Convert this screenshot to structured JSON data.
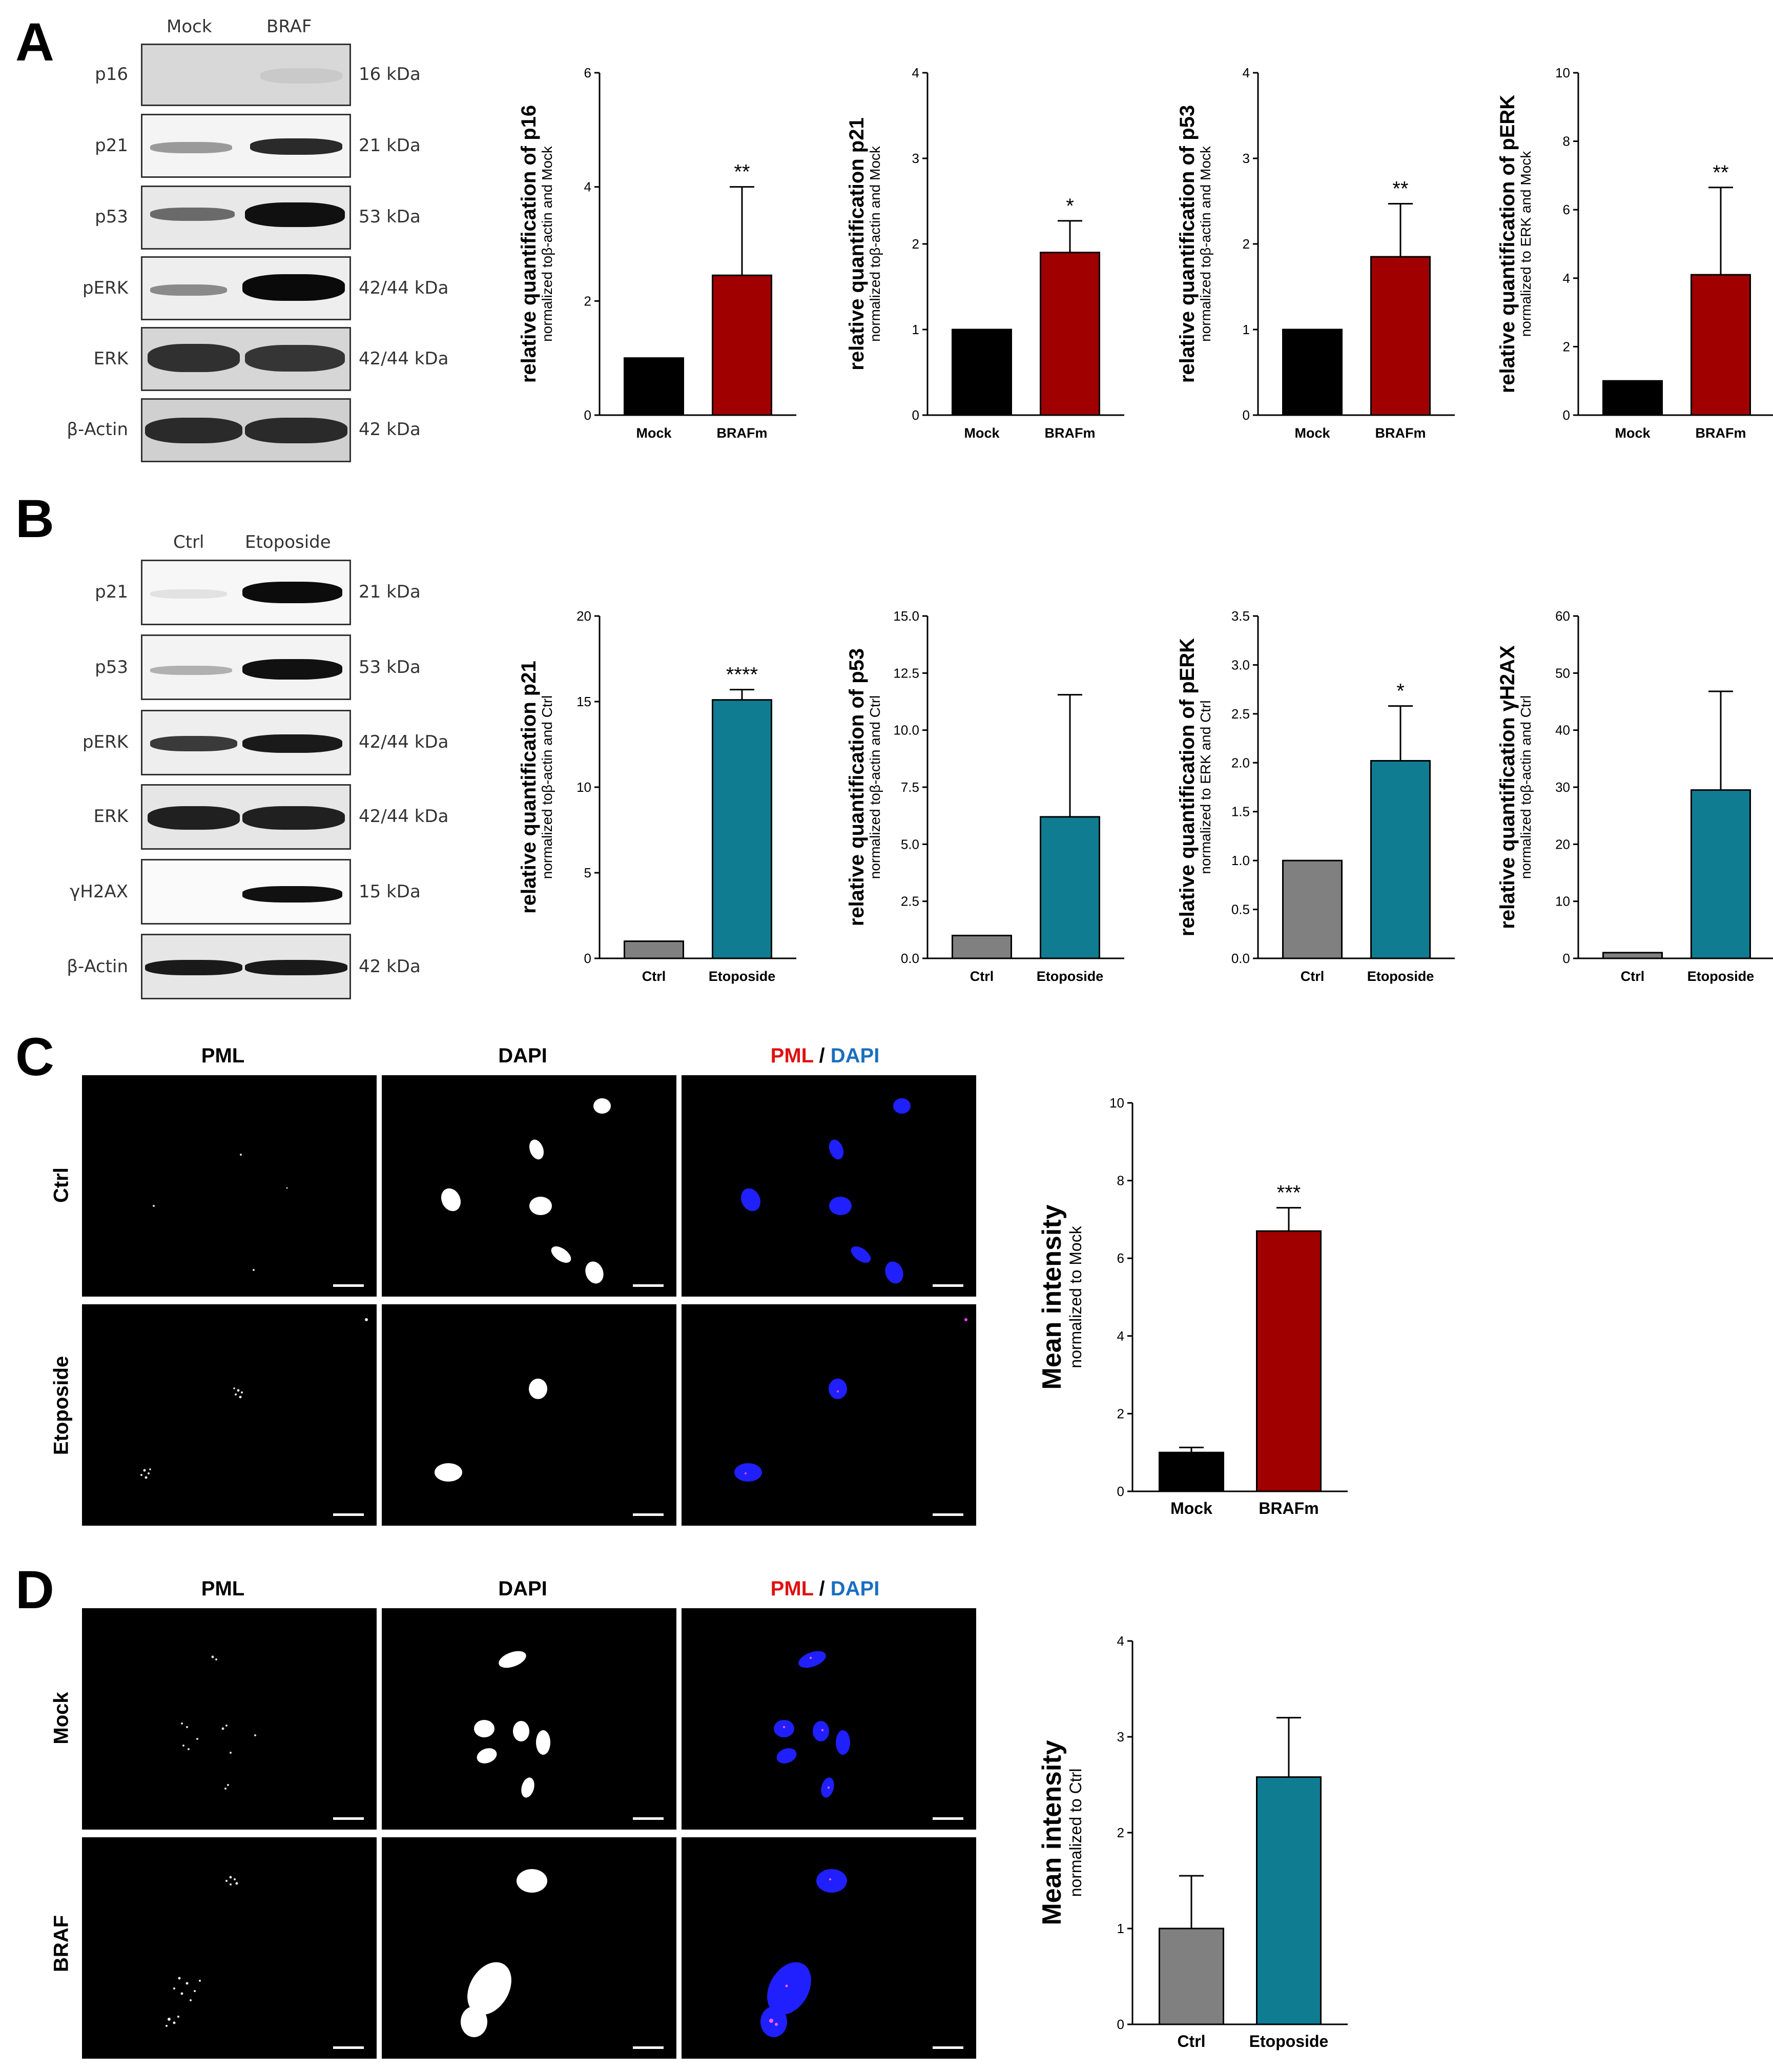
{
  "panels": {
    "a": "A",
    "b": "B",
    "c": "C",
    "d": "D"
  },
  "panel_a": {
    "blot_columns": [
      "Mock",
      "BRAF"
    ],
    "blots": [
      {
        "protein": "p16",
        "size": "16 kDa"
      },
      {
        "protein": "p21",
        "size": "21 kDa"
      },
      {
        "protein": "p53",
        "size": "53 kDa"
      },
      {
        "protein": "pERK",
        "size": "42/44 kDa"
      },
      {
        "protein": "ERK",
        "size": "42/44 kDa"
      },
      {
        "protein": "β-Actin",
        "size": "42 kDa"
      }
    ]
  },
  "panel_b": {
    "blot_columns": [
      "Ctrl",
      "Etoposide"
    ],
    "blots": [
      {
        "protein": "p21",
        "size": "21 kDa"
      },
      {
        "protein": "p53",
        "size": "53 kDa"
      },
      {
        "protein": "pERK",
        "size": "42/44 kDa"
      },
      {
        "protein": "ERK",
        "size": "42/44 kDa"
      },
      {
        "protein": "γH2AX",
        "size": "15 kDa"
      },
      {
        "protein": "β-Actin",
        "size": "42 kDa"
      }
    ]
  },
  "panel_c": {
    "columns": {
      "pml": "PML",
      "dapi": "DAPI",
      "merge_a": "PML",
      "merge_sep": " / ",
      "merge_b": "DAPI"
    },
    "rows": [
      "Ctrl",
      "Etoposide"
    ]
  },
  "panel_d": {
    "columns": {
      "pml": "PML",
      "dapi": "DAPI",
      "merge_a": "PML",
      "merge_sep": " / ",
      "merge_b": "DAPI"
    },
    "rows": [
      "Mock",
      "BRAF"
    ]
  },
  "colors": {
    "black_bar": "#000000",
    "red_bar": "#a00000",
    "grey_bar": "#808080",
    "teal_bar": "#0f7c92",
    "pml_red": "#e01010",
    "dapi_blue": "#1a6fc0"
  },
  "chart_data": [
    {
      "id": "a1",
      "type": "bar",
      "ylabel": "relative quantification of p16",
      "ysub": "normalized toβ-actin and Mock",
      "categories": [
        "Mock",
        "BRAFm"
      ],
      "values": [
        1.0,
        2.45
      ],
      "errors": [
        0,
        1.55
      ],
      "sig": [
        "",
        "**"
      ],
      "ylim": [
        0,
        6
      ],
      "ticks": [
        "0",
        "2",
        "4",
        "6"
      ],
      "tick_values": [
        0,
        2,
        4,
        6
      ],
      "colors": [
        "#000000",
        "#a00000"
      ]
    },
    {
      "id": "a2",
      "type": "bar",
      "ylabel": "relative quantification p21",
      "ysub": "normalized toβ-actin and Mock",
      "categories": [
        "Mock",
        "BRAFm"
      ],
      "values": [
        1.0,
        1.9
      ],
      "errors": [
        0,
        0.37
      ],
      "sig": [
        "",
        "*"
      ],
      "ylim": [
        0,
        4
      ],
      "ticks": [
        "0",
        "1",
        "2",
        "3",
        "4"
      ],
      "tick_values": [
        0,
        1,
        2,
        3,
        4
      ],
      "colors": [
        "#000000",
        "#a00000"
      ]
    },
    {
      "id": "a3",
      "type": "bar",
      "ylabel": "relative quantification of p53",
      "ysub": "normalized toβ-actin and Mock",
      "categories": [
        "Mock",
        "BRAFm"
      ],
      "values": [
        1.0,
        1.85
      ],
      "errors": [
        0,
        0.62
      ],
      "sig": [
        "",
        "**"
      ],
      "ylim": [
        0,
        4
      ],
      "ticks": [
        "0",
        "1",
        "2",
        "3",
        "4"
      ],
      "tick_values": [
        0,
        1,
        2,
        3,
        4
      ],
      "colors": [
        "#000000",
        "#a00000"
      ]
    },
    {
      "id": "a4",
      "type": "bar",
      "ylabel": "relative quantification of pERK",
      "ysub": "normalized to ERK and Mock",
      "categories": [
        "Mock",
        "BRAFm"
      ],
      "values": [
        1.0,
        4.1
      ],
      "errors": [
        0,
        2.55
      ],
      "sig": [
        "",
        "**"
      ],
      "ylim": [
        0,
        10
      ],
      "ticks": [
        "0",
        "2",
        "4",
        "6",
        "8",
        "10"
      ],
      "tick_values": [
        0,
        2,
        4,
        6,
        8,
        10
      ],
      "colors": [
        "#000000",
        "#a00000"
      ]
    },
    {
      "id": "b1",
      "type": "bar",
      "ylabel": "relative quantification p21",
      "ysub": "normalized toβ-actin and Ctrl",
      "categories": [
        "Ctrl",
        "Etoposide"
      ],
      "values": [
        1.0,
        15.1
      ],
      "errors": [
        0,
        0.6
      ],
      "sig": [
        "",
        "****"
      ],
      "ylim": [
        0,
        20
      ],
      "ticks": [
        "0",
        "5",
        "10",
        "15",
        "20"
      ],
      "tick_values": [
        0,
        5,
        10,
        15,
        20
      ],
      "colors": [
        "#808080",
        "#0f7c92"
      ]
    },
    {
      "id": "b2",
      "type": "bar",
      "ylabel": "relative quantification of p53",
      "ysub": "normalized toβ-actin and Ctrl",
      "categories": [
        "Ctrl",
        "Etoposide"
      ],
      "values": [
        1.0,
        6.2
      ],
      "errors": [
        0,
        5.35
      ],
      "sig": [
        "",
        ""
      ],
      "ylim": [
        0,
        15
      ],
      "ticks": [
        "0.0",
        "2.5",
        "5.0",
        "7.5",
        "10.0",
        "12.5",
        "15.0"
      ],
      "tick_values": [
        0,
        2.5,
        5,
        7.5,
        10,
        12.5,
        15
      ],
      "colors": [
        "#808080",
        "#0f7c92"
      ]
    },
    {
      "id": "b3",
      "type": "bar",
      "ylabel": "relative quantification of pERK",
      "ysub": "normalized to ERK and Ctrl",
      "categories": [
        "Ctrl",
        "Etoposide"
      ],
      "values": [
        1.0,
        2.02
      ],
      "errors": [
        0,
        0.56
      ],
      "sig": [
        "",
        "*"
      ],
      "ylim": [
        0,
        3.5
      ],
      "ticks": [
        "0.0",
        "0.5",
        "1.0",
        "1.5",
        "2.0",
        "2.5",
        "3.0",
        "3.5"
      ],
      "tick_values": [
        0,
        0.5,
        1,
        1.5,
        2,
        2.5,
        3,
        3.5
      ],
      "colors": [
        "#808080",
        "#0f7c92"
      ]
    },
    {
      "id": "b4",
      "type": "bar",
      "ylabel": "relative quantification  γH2AX",
      "ysub": "normalized toβ-actin and Ctrl",
      "categories": [
        "Ctrl",
        "Etoposide"
      ],
      "values": [
        1.0,
        29.5
      ],
      "errors": [
        0,
        17.3
      ],
      "sig": [
        "",
        ""
      ],
      "ylim": [
        0,
        60
      ],
      "ticks": [
        "0",
        "10",
        "20",
        "30",
        "40",
        "50",
        "60"
      ],
      "tick_values": [
        0,
        10,
        20,
        30,
        40,
        50,
        60
      ],
      "colors": [
        "#808080",
        "#0f7c92"
      ]
    },
    {
      "id": "c",
      "type": "bar",
      "ylabel": "Mean intensity",
      "ysub": "normalized to Mock",
      "categories": [
        "Mock",
        "BRAFm"
      ],
      "values": [
        1.0,
        6.7
      ],
      "errors": [
        0.13,
        0.6
      ],
      "sig": [
        "",
        "***"
      ],
      "ylim": [
        0,
        10
      ],
      "ticks": [
        "0",
        "2",
        "4",
        "6",
        "8",
        "10"
      ],
      "tick_values": [
        0,
        2,
        4,
        6,
        8,
        10
      ],
      "colors": [
        "#000000",
        "#a00000"
      ]
    },
    {
      "id": "d",
      "type": "bar",
      "ylabel": "Mean intensity",
      "ysub": "normalized to Ctrl",
      "categories": [
        "Ctrl",
        "Etoposide"
      ],
      "values": [
        1.0,
        2.58
      ],
      "errors": [
        0.55,
        0.62
      ],
      "sig": [
        "",
        ""
      ],
      "ylim": [
        0,
        4
      ],
      "ticks": [
        "0",
        "1",
        "2",
        "3",
        "4"
      ],
      "tick_values": [
        0,
        1,
        2,
        3,
        4
      ],
      "colors": [
        "#808080",
        "#0f7c92"
      ]
    }
  ]
}
